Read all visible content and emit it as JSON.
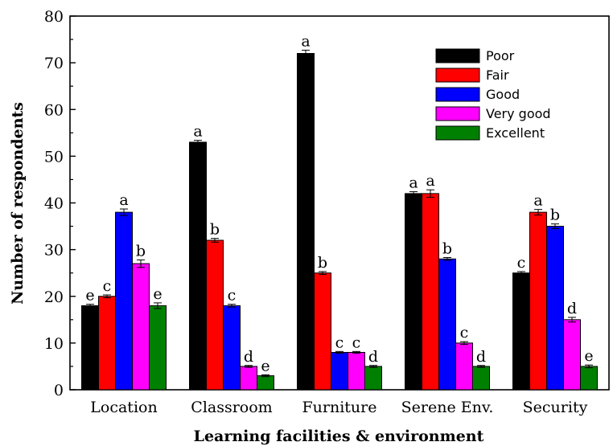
{
  "chart_data": {
    "type": "bar",
    "xlabel": "Learning facilities & environment",
    "ylabel": "Number of respondents",
    "ylim": [
      0,
      80
    ],
    "yticks": [
      "0",
      "10",
      "20",
      "30",
      "40",
      "50",
      "60",
      "70",
      "80"
    ],
    "grid": false,
    "legend_position": "top-right",
    "categories": [
      "Location",
      "Classroom",
      "Furniture",
      "Serene Env.",
      "Security"
    ],
    "series": [
      {
        "name": "Poor",
        "color": "#000000",
        "values": [
          18,
          53,
          72,
          42,
          25
        ],
        "error": [
          0.3,
          0.4,
          0.7,
          0.4,
          0.3
        ],
        "letters": [
          "e",
          "a",
          "a",
          "a",
          "c"
        ]
      },
      {
        "name": "Fair",
        "color": "#ff0000",
        "values": [
          20,
          32,
          25,
          42,
          38
        ],
        "error": [
          0.3,
          0.4,
          0.3,
          0.8,
          0.6
        ],
        "letters": [
          "c",
          "b",
          "b",
          "a",
          "a"
        ]
      },
      {
        "name": "Good",
        "color": "#0000ff",
        "values": [
          38,
          18,
          8,
          28,
          35
        ],
        "error": [
          0.7,
          0.3,
          0.2,
          0.3,
          0.5
        ],
        "letters": [
          "a",
          "c",
          "c",
          "b",
          "b"
        ]
      },
      {
        "name": "Very good",
        "color": "#ff00ff",
        "values": [
          27,
          5,
          8,
          10,
          15
        ],
        "error": [
          0.8,
          0.2,
          0.2,
          0.3,
          0.5
        ],
        "letters": [
          "b",
          "d",
          "c",
          "c",
          "d"
        ]
      },
      {
        "name": "Excellent",
        "color": "#008000",
        "values": [
          18,
          3,
          5,
          5,
          5
        ],
        "error": [
          0.6,
          0.2,
          0.2,
          0.2,
          0.3
        ],
        "letters": [
          "e",
          "e",
          "d",
          "d",
          "e"
        ]
      }
    ]
  }
}
